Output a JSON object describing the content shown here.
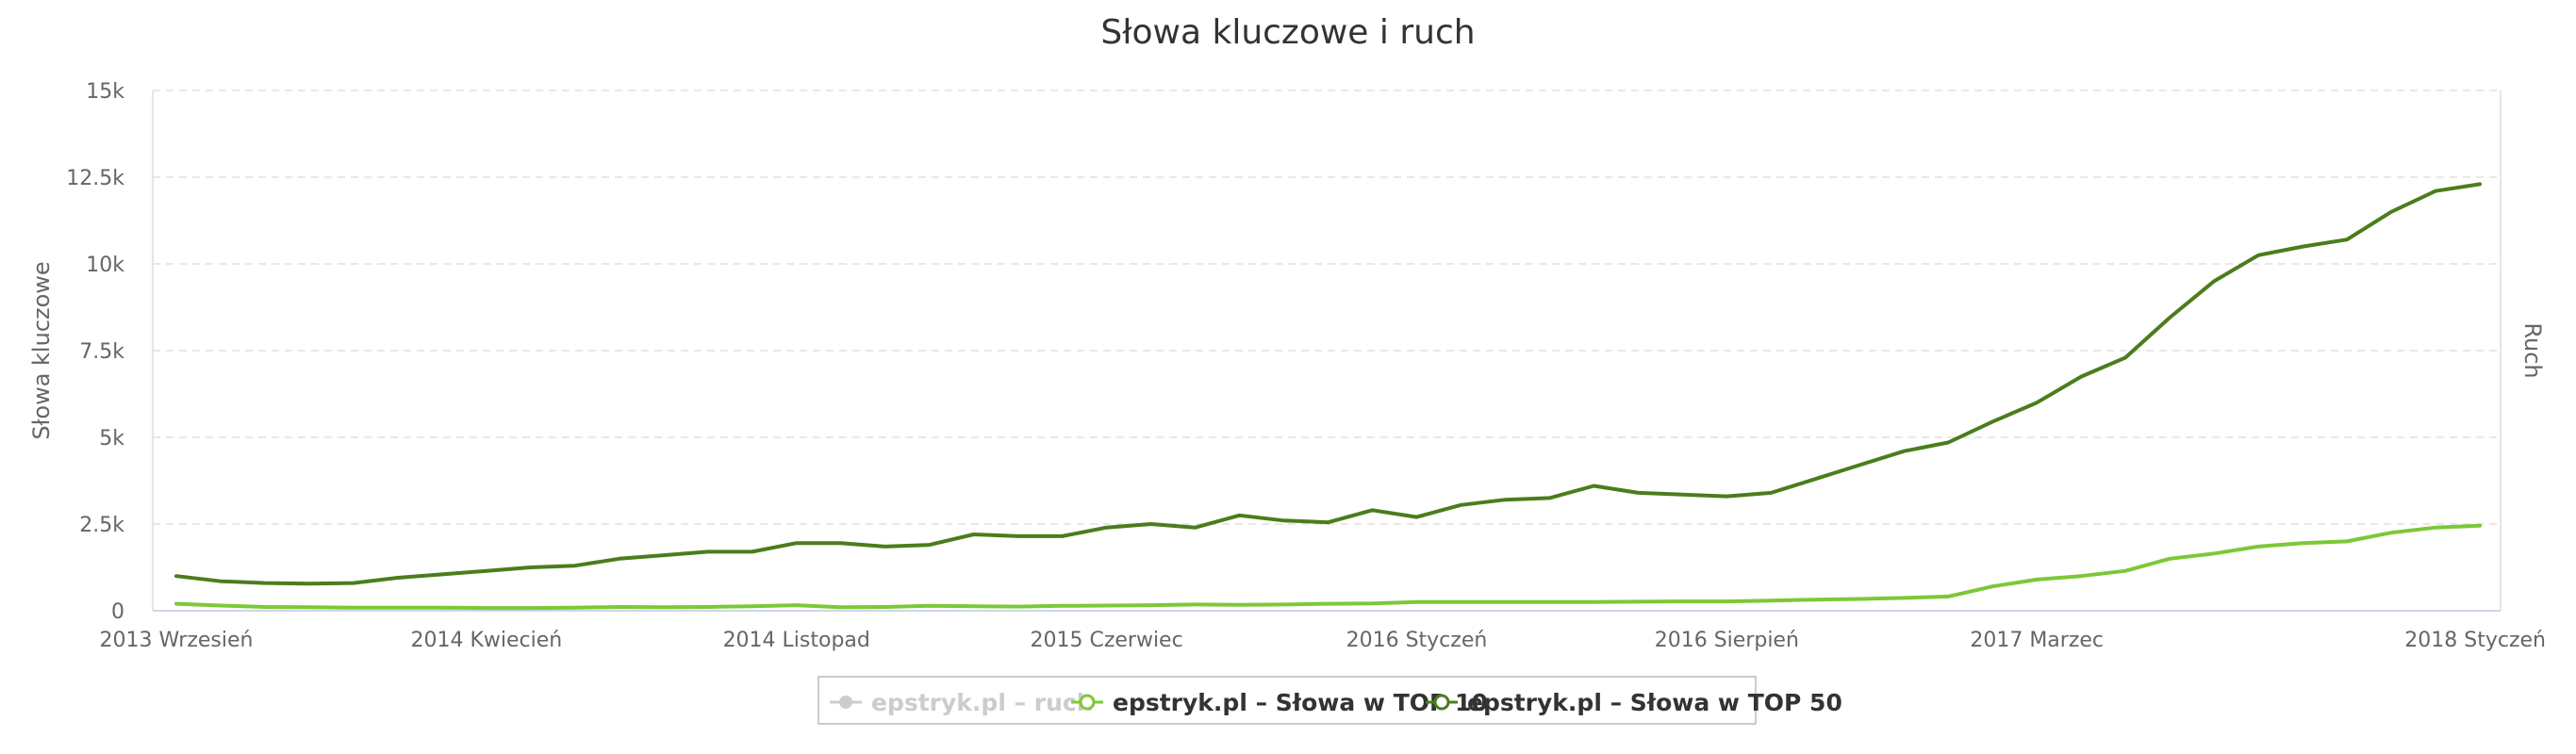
{
  "chart_data": {
    "type": "line",
    "title": "Słowa kluczowe i ruch",
    "ylabel": "Słowa kluczowe",
    "ylabel_right": "Ruch",
    "ylim": [
      0,
      15000
    ],
    "yticks": [
      0,
      2500,
      5000,
      7500,
      10000,
      12500,
      15000
    ],
    "ytick_labels": [
      "0",
      "2.5k",
      "5k",
      "7.5k",
      "10k",
      "12.5k",
      "15k"
    ],
    "x_tick_labels": [
      {
        "index": 0,
        "label": "2013 Wrzesień"
      },
      {
        "index": 7,
        "label": "2014 Kwiecień"
      },
      {
        "index": 14,
        "label": "2014 Listopad"
      },
      {
        "index": 21,
        "label": "2015 Czerwiec"
      },
      {
        "index": 28,
        "label": "2016 Styczeń"
      },
      {
        "index": 35,
        "label": "2016 Sierpień"
      },
      {
        "index": 42,
        "label": "2017 Marzec"
      },
      {
        "index": 52,
        "label": "2018 Styczeń"
      }
    ],
    "grid": true,
    "legend_placement": "bottom-center",
    "series": [
      {
        "name": "epstryk.pl – ruch",
        "visible": false,
        "color": "#cccccc",
        "values": []
      },
      {
        "name": "epstryk.pl – Słowa w TOP 10",
        "visible": true,
        "color": "#7cc837",
        "values": [
          200,
          150,
          110,
          100,
          90,
          90,
          90,
          80,
          80,
          90,
          110,
          100,
          110,
          130,
          160,
          100,
          110,
          140,
          130,
          120,
          140,
          150,
          160,
          180,
          170,
          180,
          200,
          210,
          250,
          250,
          250,
          250,
          250,
          260,
          270,
          270,
          290,
          320,
          340,
          370,
          410,
          700,
          900,
          1000,
          1150,
          1500,
          1650,
          1850,
          1950,
          2000,
          2250,
          2400,
          2450
        ]
      },
      {
        "name": "epstryk.pl – Słowa w TOP 50",
        "visible": true,
        "color": "#4a7d1c",
        "values": [
          1000,
          850,
          800,
          780,
          800,
          950,
          1050,
          1150,
          1250,
          1300,
          1500,
          1600,
          1700,
          1700,
          1950,
          1950,
          1850,
          1900,
          2200,
          2150,
          2150,
          2400,
          2500,
          2400,
          2750,
          2600,
          2550,
          2900,
          2700,
          3050,
          3200,
          3250,
          3600,
          3400,
          3350,
          3300,
          3400,
          3800,
          4200,
          4600,
          4850,
          5450,
          6000,
          6750,
          7300,
          8450,
          9500,
          10250,
          10500,
          10700,
          11500,
          12100,
          12300
        ]
      }
    ]
  }
}
